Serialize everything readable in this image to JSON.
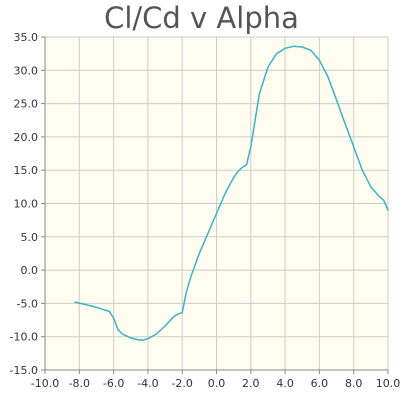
{
  "chart_data": {
    "type": "line",
    "title": "Cl/Cd v Alpha",
    "xlabel": "",
    "ylabel": "",
    "xlim": [
      -10.0,
      10.0
    ],
    "ylim": [
      -15.0,
      35.0
    ],
    "grid": true,
    "x_ticks": [
      "-10.0",
      "-8.0",
      "-6.0",
      "-4.0",
      "-2.0",
      "0.0",
      "2.0",
      "4.0",
      "6.0",
      "8.0",
      "10.0"
    ],
    "y_ticks": [
      "35.0",
      "30.0",
      "25.0",
      "20.0",
      "15.0",
      "10.0",
      "5.0",
      "0.0",
      "-5.0",
      "-10.0",
      "-15.0"
    ],
    "colors": {
      "line": "#3bb3c3",
      "plot_background": "#fffcf0",
      "grid": "#cccccc",
      "axis": "#888888"
    },
    "series": [
      {
        "x": [
          -8.25,
          -7.75,
          -7.25,
          -6.75,
          -6.25,
          -6.0,
          -5.75,
          -5.5,
          -5.0,
          -4.5,
          -4.25,
          -4.0,
          -3.5,
          -3.0,
          -2.5,
          -2.25,
          -2.0,
          -1.75,
          -1.5,
          -1.0,
          -0.5,
          0.0,
          0.5,
          1.0,
          1.25,
          1.5,
          1.75,
          2.0,
          2.25,
          2.5,
          3.0,
          3.5,
          4.0,
          4.5,
          5.0,
          5.5,
          6.0,
          6.5,
          7.0,
          7.5,
          8.0,
          8.5,
          9.0,
          9.5,
          9.75,
          10.0
        ],
        "y": [
          -4.8,
          -5.1,
          -5.4,
          -5.8,
          -6.2,
          -7.2,
          -8.9,
          -9.6,
          -10.2,
          -10.5,
          -10.5,
          -10.3,
          -9.6,
          -8.4,
          -7.0,
          -6.6,
          -6.4,
          -3.2,
          -1.0,
          2.5,
          5.5,
          8.5,
          11.5,
          13.9,
          14.8,
          15.4,
          15.8,
          18.5,
          22.5,
          26.5,
          30.5,
          32.5,
          33.3,
          33.6,
          33.5,
          33.0,
          31.5,
          29.0,
          25.5,
          22.0,
          18.5,
          15.0,
          12.5,
          11.0,
          10.5,
          9.0
        ]
      }
    ]
  }
}
